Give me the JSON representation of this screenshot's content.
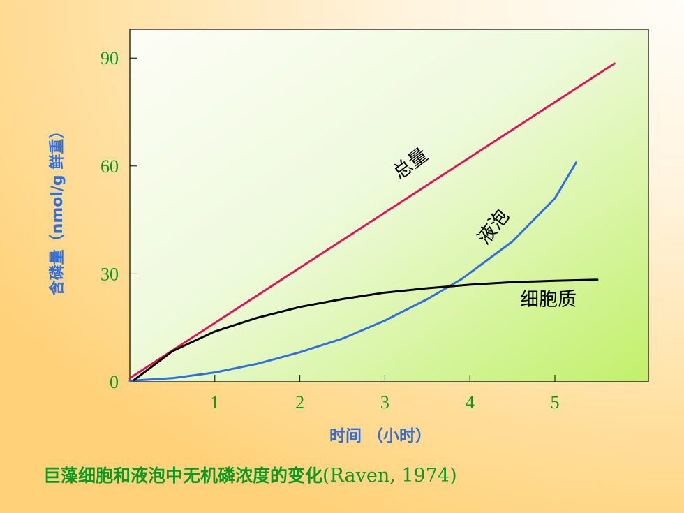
{
  "chart_data": {
    "type": "line",
    "ylabel": "含磷量（nmol/g 鲜重）",
    "xlabel": "时间 （小时）",
    "caption_main": "巨藻细胞和液泡中无机磷浓度的变化",
    "caption_cite": "(Raven, 1974)",
    "xlim": [
      0,
      6.1
    ],
    "ylim": [
      0,
      98
    ],
    "xticks": [
      1,
      2,
      3,
      4,
      5
    ],
    "yticks": [
      0,
      30,
      60,
      90
    ],
    "grid": false,
    "legend": "none",
    "colors": {
      "total": "#e0145a",
      "vacuole": "#2f6fe0",
      "cytoplasm": "#000000",
      "ticks": "#0a9a24",
      "axis_label": "#2f6fe0"
    },
    "series": [
      {
        "name": "总量",
        "color": "#e0145a",
        "x": [
          0.0,
          5.7
        ],
        "y": [
          1,
          88.5
        ]
      },
      {
        "name": "液泡",
        "color": "#2f6fe0",
        "x": [
          0.0,
          0.5,
          1.0,
          1.5,
          2.0,
          2.5,
          3.0,
          3.5,
          3.9,
          4.5,
          5.0,
          5.25
        ],
        "y": [
          0.3,
          1.0,
          2.6,
          5.0,
          8.2,
          12.0,
          17.0,
          23.0,
          28.5,
          39.0,
          51.0,
          61.0
        ]
      },
      {
        "name": "细胞质",
        "color": "#000000",
        "x": [
          0.05,
          0.5,
          1.0,
          1.5,
          2.0,
          2.5,
          3.0,
          3.5,
          4.0,
          4.5,
          5.0,
          5.5
        ],
        "y": [
          0.5,
          8.5,
          14.0,
          17.8,
          20.8,
          23.0,
          24.8,
          26.0,
          27.0,
          27.7,
          28.1,
          28.4
        ]
      }
    ]
  }
}
